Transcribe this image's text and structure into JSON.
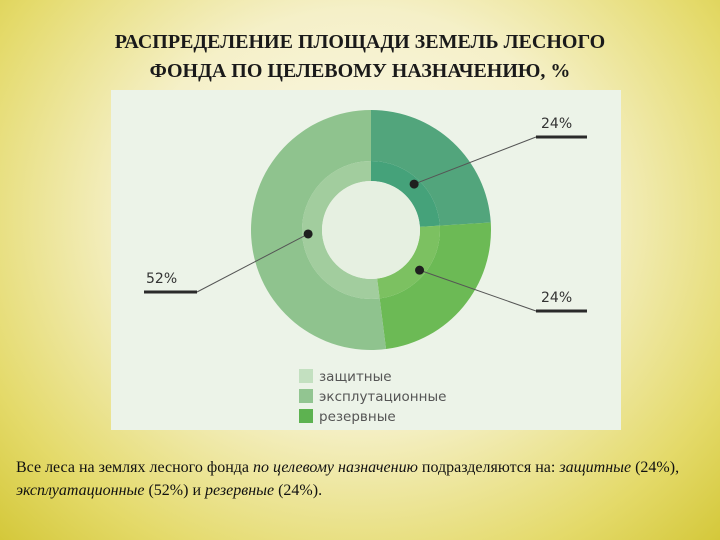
{
  "title_line1": "РАСПРЕДЕЛЕНИЕ ПЛОЩАДИ ЗЕМЕЛЬ ЛЕСНОГО",
  "title_line2": "ФОНДА ПО ЦЕЛЕВОМУ НАЗНАЧЕНИЮ, %",
  "colors": {
    "outer_zashchitnye": "#52a57c",
    "outer_rezervnye": "#6cba55",
    "outer_ekspl": "#8fc38e",
    "inner_zashchitnye": "#45a27a",
    "inner_rezervnye": "#7cc161",
    "inner_ekspl": "#a2cd9e",
    "legend_zashchitnye": "#c3e0c0",
    "legend_ekspl": "#92c591",
    "legend_rezervnye": "#5db250"
  },
  "chart_data": {
    "type": "pie",
    "slices": [
      {
        "label": "защитные",
        "value": 24,
        "display": "24%"
      },
      {
        "label": "резервные",
        "value": 24,
        "display": "24%"
      },
      {
        "label": "эксплуатационные",
        "value": 52,
        "display": "52%"
      }
    ],
    "legend": [
      "защитные",
      "эксплутационные",
      "резервные"
    ],
    "legend_placement": "bottom-center"
  },
  "caption": {
    "p1": "Все леса на землях лесного фонда ",
    "p2": "по целевому назначению",
    "p3": " подразделяются на: ",
    "p4": "защитные",
    "p5": " (24%), ",
    "p6": "эксплуатационные",
    "p7": " (52%) и ",
    "p8": "резервные",
    "p9": " (24%)."
  }
}
